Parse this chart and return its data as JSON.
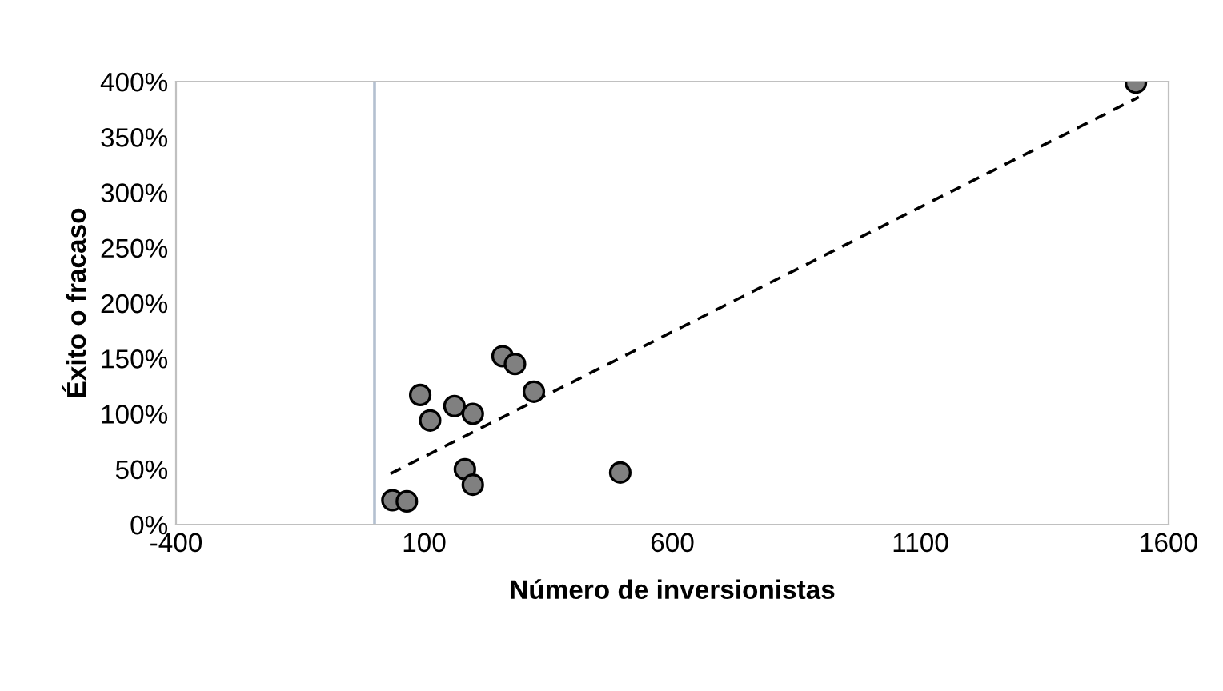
{
  "chart_data": {
    "type": "scatter",
    "xlabel": "Número de inversionistas",
    "ylabel": "Éxito o fracaso",
    "series": [
      {
        "color": "#808080",
        "x": [
          1534,
          36,
          65,
          92,
          112,
          161,
          198,
          258,
          283,
          321,
          182,
          198,
          495
        ],
        "values": [
          399,
          22,
          21,
          117,
          94,
          107,
          100,
          152,
          145,
          120,
          50,
          36,
          47
        ]
      },
      {
        "type": "line",
        "color": "#000000",
        "line_style": "dashed",
        "marker": "none",
        "x": [
          32,
          1540
        ],
        "values": [
          46,
          386
        ]
      }
    ],
    "marker": "circle",
    "xlim": [
      -400,
      1600
    ],
    "xticks": [
      -400,
      100,
      600,
      1100,
      1600
    ],
    "ylim": [
      0,
      400
    ],
    "yticks": [
      {
        "value": 0,
        "label": "0%"
      },
      {
        "value": 50,
        "label": "50%"
      },
      {
        "value": 100,
        "label": "100%"
      },
      {
        "value": 150,
        "label": "150%"
      },
      {
        "value": 200,
        "label": "200%"
      },
      {
        "value": 250,
        "label": "250%"
      },
      {
        "value": 300,
        "label": "300%"
      },
      {
        "value": 350,
        "label": "350%"
      },
      {
        "value": 400,
        "label": "400%"
      }
    ],
    "grid": false,
    "legend": false
  }
}
